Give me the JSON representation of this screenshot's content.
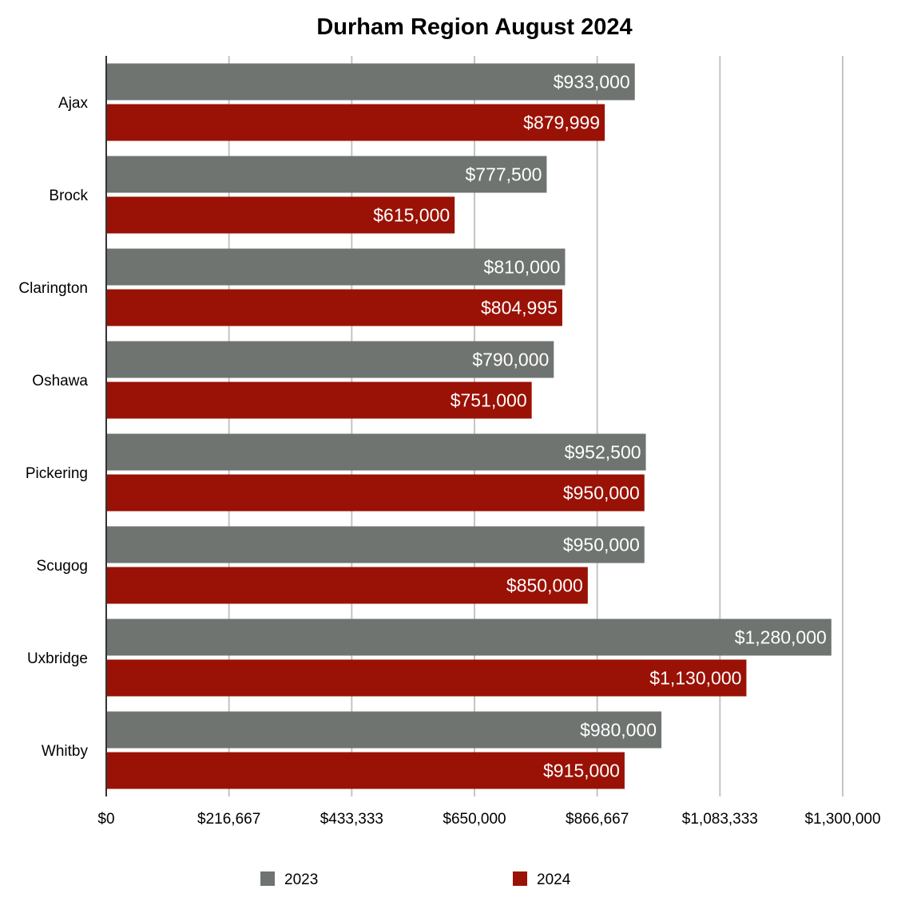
{
  "chart_data": {
    "type": "bar",
    "orientation": "horizontal",
    "title": "Durham Region August 2024",
    "categories": [
      "Ajax",
      "Brock",
      "Clarington",
      "Oshawa",
      "Pickering",
      "Scugog",
      "Uxbridge",
      "Whitby"
    ],
    "series": [
      {
        "name": "2023",
        "color": "#6f7471",
        "values": [
          933000,
          777500,
          810000,
          790000,
          952500,
          950000,
          1280000,
          980000
        ],
        "labels": [
          "$933,000",
          "$777,500",
          "$810,000",
          "$790,000",
          "$952,500",
          "$950,000",
          "$1,280,000",
          "$980,000"
        ]
      },
      {
        "name": "2024",
        "color": "#9a1106",
        "values": [
          879999,
          615000,
          804995,
          751000,
          950000,
          850000,
          1130000,
          915000
        ],
        "labels": [
          "$879,999",
          "$615,000",
          "$804,995",
          "$751,000",
          "$950,000",
          "$850,000",
          "$1,130,000",
          "$915,000"
        ]
      }
    ],
    "xlim": [
      0,
      1300000
    ],
    "xticks": [
      0,
      216667,
      433333,
      650000,
      866667,
      1083333,
      1300000
    ],
    "xtick_labels": [
      "$0",
      "$216,667",
      "$433,333",
      "$650,000",
      "$866,667",
      "$1,083,333",
      "$1,300,000"
    ],
    "grid": true,
    "legend_position": "bottom"
  }
}
